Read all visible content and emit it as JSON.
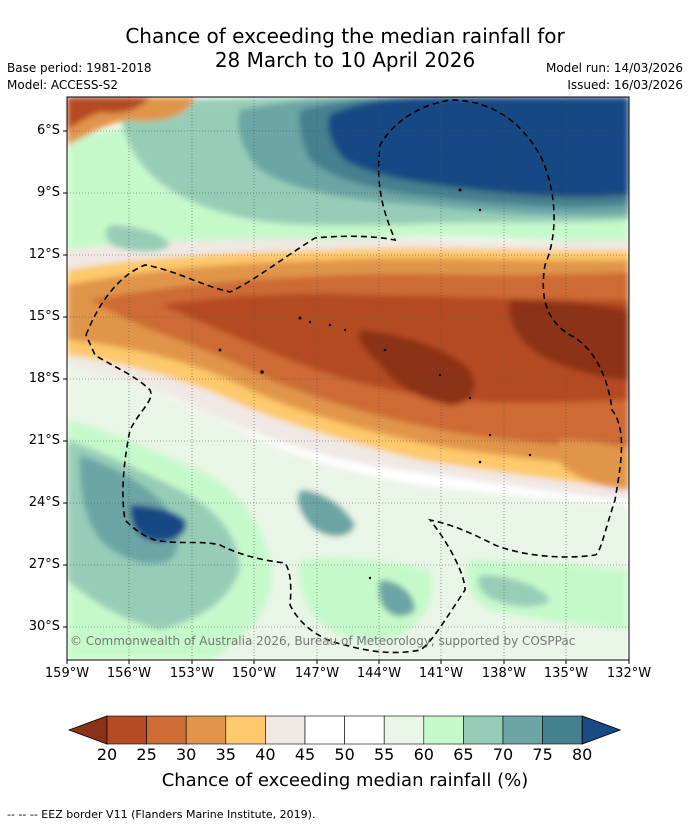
{
  "title": {
    "line1": "Chance of exceeding the median rainfall for",
    "line2": "28 March to 10 April 2026"
  },
  "meta": {
    "base_period": "Base period: 1981-2018",
    "model": "Model: ACCESS-S2",
    "model_run": "Model run: 14/03/2026",
    "issued": "Issued: 16/03/2026"
  },
  "map": {
    "lat_ticks": [
      "6°S",
      "9°S",
      "12°S",
      "15°S",
      "18°S",
      "21°S",
      "24°S",
      "27°S",
      "30°S"
    ],
    "lon_ticks": [
      "159°W",
      "156°W",
      "153°W",
      "150°W",
      "147°W",
      "144°W",
      "141°W",
      "138°W",
      "135°W",
      "132°W"
    ],
    "copyright": "© Commonwealth of Australia 2026, Bureau of Meteorology, supported by COSPPac"
  },
  "colorbar": {
    "labels": [
      "20",
      "25",
      "30",
      "35",
      "40",
      "45",
      "50",
      "55",
      "60",
      "65",
      "70",
      "75",
      "80"
    ],
    "colors": [
      "#8c3119",
      "#b54a24",
      "#cd6b35",
      "#e1954a",
      "#fdc96c",
      "#f0e8e4",
      "#ffffff",
      "#ffffff",
      "#e9f5e6",
      "#c6f9ca",
      "#97cdb7",
      "#6ca5a5",
      "#44808e",
      "#184a84"
    ],
    "title": "Chance of exceeding median rainfall (%)"
  },
  "footnote": "--  --  -- EEZ border V11 (Flanders Marine Institute, 2019)."
}
